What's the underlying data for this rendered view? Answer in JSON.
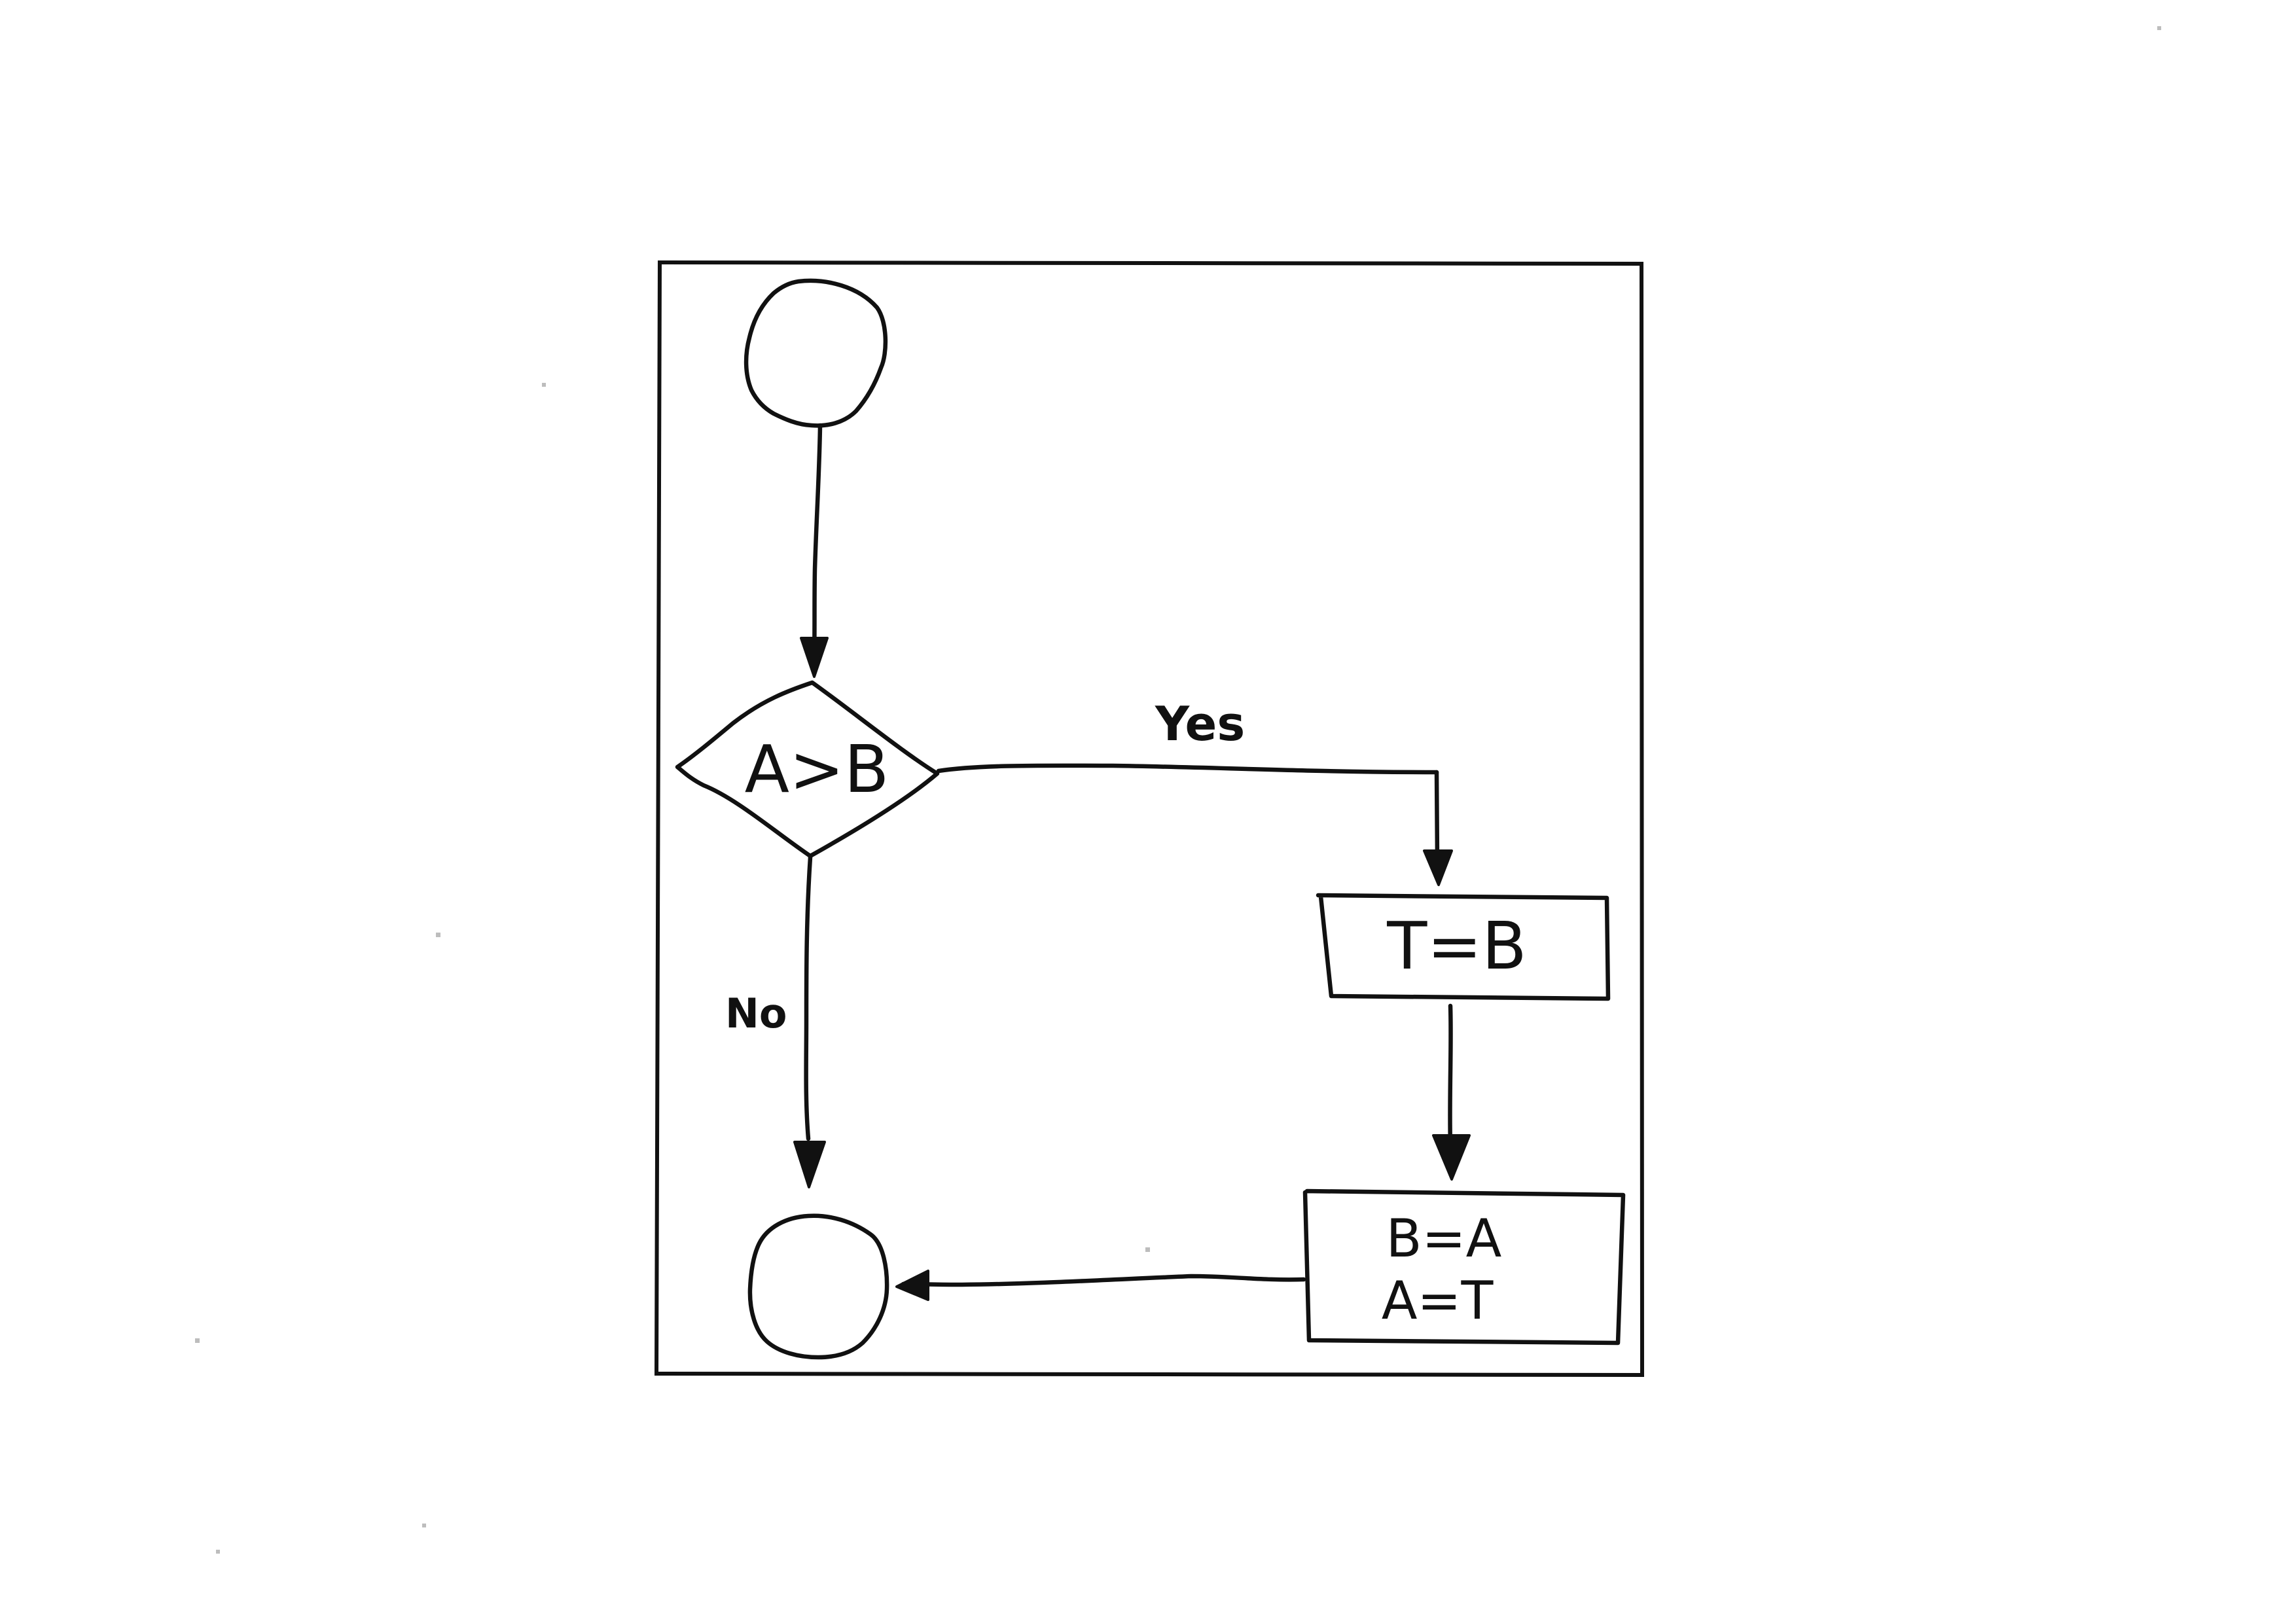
{
  "diagram": {
    "nodes": [
      {
        "id": "start",
        "shape": "circle",
        "text": ""
      },
      {
        "id": "decision",
        "shape": "diamond",
        "text": "A>B"
      },
      {
        "id": "assign-t",
        "shape": "rectangle",
        "text": "T=B"
      },
      {
        "id": "swap",
        "shape": "rectangle",
        "lines": [
          "B=A",
          "A=T"
        ]
      },
      {
        "id": "end",
        "shape": "circle",
        "text": ""
      }
    ],
    "edges": [
      {
        "from": "start",
        "to": "decision",
        "label": ""
      },
      {
        "from": "decision",
        "to": "assign-t",
        "label": "Yes"
      },
      {
        "from": "decision",
        "to": "end",
        "label": "No"
      },
      {
        "from": "assign-t",
        "to": "swap",
        "label": ""
      },
      {
        "from": "swap",
        "to": "end",
        "label": ""
      }
    ],
    "colors": {
      "ink": "#111111",
      "paper": "#ffffff"
    }
  }
}
